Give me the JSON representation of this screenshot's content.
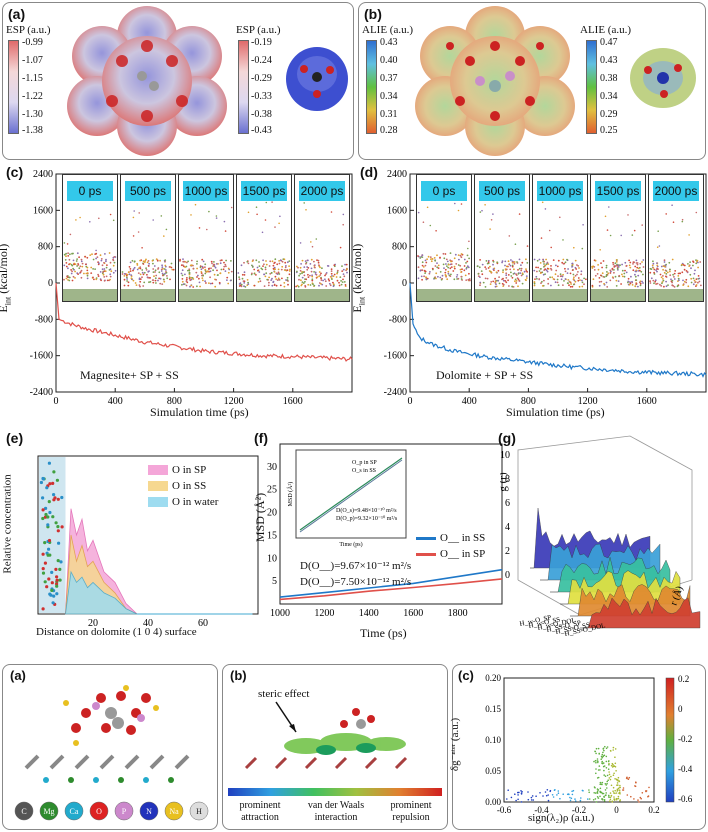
{
  "panel_a": {
    "label": "(a)",
    "title_left": "ESP (a.u.)",
    "ticks_left": [
      "-0.99",
      "-1.07",
      "-1.15",
      "-1.22",
      "-1.30",
      "-1.38"
    ],
    "title_right": "ESP (a.u.)",
    "ticks_right": [
      "-0.19",
      "-0.24",
      "-0.29",
      "-0.33",
      "-0.38",
      "-0.43"
    ]
  },
  "panel_b": {
    "label": "(b)",
    "title_left": "ALIE (a.u.)",
    "ticks_left": [
      "0.43",
      "0.40",
      "0.37",
      "0.34",
      "0.31",
      "0.28"
    ],
    "title_right": "ALIE (a.u.)",
    "ticks_right": [
      "0.47",
      "0.43",
      "0.38",
      "0.34",
      "0.29",
      "0.25"
    ]
  },
  "panel_c": {
    "label": "(c)",
    "ylabel": "E",
    "ylabel_sub": "int",
    "ylabel_unit": " (kcal/mol)",
    "xlabel": "Simulation time (ps)",
    "annotation": "Magnesite+ SP + SS",
    "snapshots": [
      "0 ps",
      "500 ps",
      "1000 ps",
      "1500 ps",
      "2000 ps"
    ],
    "color": "#e0504a"
  },
  "panel_d": {
    "label": "(d)",
    "ylabel": "E",
    "ylabel_sub": "int",
    "ylabel_unit": " (kcal/mol)",
    "xlabel": "Simulation time (ps)",
    "annotation": "Dolomite + SP + SS",
    "snapshots": [
      "0 ps",
      "500 ps",
      "1000 ps",
      "1500 ps",
      "2000 ps"
    ],
    "color": "#1f78c8"
  },
  "panel_e": {
    "label": "(e)",
    "ylabel": "Relative concentration",
    "xlabel": "Distance on dolomite (1 0 4) surface",
    "legend": [
      "O in SP",
      "O in SS",
      "O in water"
    ]
  },
  "panel_f": {
    "label": "(f)",
    "ylabel": "MSD (Å²)",
    "xlabel": "Time (ps)",
    "legend": [
      "O__ in SS",
      "O__ in SP"
    ],
    "d1": "D(O__)=9.67×10⁻¹² m²/s",
    "d2": "D(O__)=7.50×10⁻¹² m²/s",
    "inset_legend": [
      "O_p in SP",
      "O_s in SS"
    ],
    "inset_d1": "D(O_s)=9.48×10⁻¹⁰ m²/s",
    "inset_d2": "D(O_p)=9.32×10⁻¹⁰ m²/s",
    "inset_xlabel": "Time (ps)",
    "inset_ylabel": "MSD (Å²)"
  },
  "panel_g": {
    "label": "(g)",
    "ylabel": "g (r)",
    "xlabel": "r (Å)",
    "series_labels": [
      "H_w-O_SP",
      "H_w-O_SS",
      "H_w-O_DOL",
      "H_SS-O_SP",
      "H_SS-O_SS",
      "H_SS-O_DOL"
    ],
    "zticks": [
      "10",
      "8",
      "6",
      "4",
      "2",
      "0"
    ]
  },
  "bottom_a": {
    "label": "(a)",
    "atoms": [
      "C",
      "Mg",
      "Ca",
      "O",
      "P",
      "N",
      "Na",
      "H"
    ],
    "atom_colors": [
      "#555555",
      "#2e8b2e",
      "#22aacc",
      "#dd2222",
      "#cc88cc",
      "#2233bb",
      "#e8c020",
      "#dddddd"
    ]
  },
  "bottom_b": {
    "label": "(b)",
    "steric": "steric effect",
    "bar_labels": [
      "prominent attraction",
      "van der Waals interaction",
      "prominent repulsion"
    ]
  },
  "bottom_c": {
    "label": "(c)",
    "ylabel": "δg⁻ⁿᵗᵉʳ (a.u.)",
    "xlabel": "sign(λ₂)ρ (a.u.)",
    "cb_ticks": [
      "0.2",
      "0",
      "-0.2",
      "-0.4",
      "-0.6"
    ]
  },
  "chart_data": [
    {
      "type": "line",
      "title": "(c) Magnesite+ SP + SS",
      "xlabel": "Simulation time (ps)",
      "ylabel": "E_int (kcal/mol)",
      "xlim": [
        0,
        2000
      ],
      "ylim": [
        -2400,
        2400
      ],
      "xticks": [
        0,
        400,
        800,
        1200,
        1600
      ],
      "yticks": [
        2400,
        1600,
        800,
        0,
        -800,
        -1600,
        -2400
      ],
      "x": [
        0,
        20,
        100,
        200,
        400,
        600,
        800,
        1000,
        1200,
        1400,
        1600,
        1800,
        2000
      ],
      "y": [
        0,
        -800,
        -900,
        -1000,
        -1150,
        -1300,
        -1400,
        -1500,
        -1550,
        -1600,
        -1620,
        -1650,
        -1680
      ]
    },
    {
      "type": "line",
      "title": "(d) Dolomite + SP + SS",
      "xlabel": "Simulation time (ps)",
      "ylabel": "E_int (kcal/mol)",
      "xlim": [
        0,
        2000
      ],
      "ylim": [
        -2400,
        2400
      ],
      "xticks": [
        0,
        400,
        800,
        1200,
        1600
      ],
      "yticks": [
        2400,
        1600,
        800,
        0,
        -800,
        -1600,
        -2400
      ],
      "x": [
        0,
        20,
        60,
        150,
        300,
        500,
        700,
        900,
        1100,
        1300,
        1500,
        1700,
        1900,
        2000
      ],
      "y": [
        0,
        -900,
        -1200,
        -1350,
        -1500,
        -1620,
        -1700,
        -1780,
        -1850,
        -1900,
        -1950,
        -1980,
        -2000,
        -2020
      ]
    },
    {
      "type": "area",
      "title": "(e) Relative concentration",
      "xlabel": "Distance on dolomite (1 0 4) surface",
      "xlim": [
        0,
        80
      ],
      "xticks": [
        20,
        40,
        60
      ],
      "series": [
        {
          "name": "O in SP",
          "x": [
            10,
            12,
            14,
            16,
            18,
            20,
            24,
            28,
            32,
            36
          ],
          "values": [
            0,
            20,
            15,
            18,
            12,
            14,
            8,
            6,
            2,
            0
          ]
        },
        {
          "name": "O in SS",
          "x": [
            10,
            12,
            14,
            16,
            18,
            20,
            24,
            28,
            32,
            36
          ],
          "values": [
            0,
            15,
            10,
            13,
            9,
            10,
            6,
            4,
            1,
            0
          ]
        },
        {
          "name": "O in water",
          "x": [
            10,
            12,
            14,
            16,
            18,
            20,
            24,
            28,
            32,
            36
          ],
          "values": [
            0,
            8,
            6,
            7,
            5,
            6,
            4,
            3,
            1,
            0
          ]
        }
      ]
    },
    {
      "type": "line",
      "title": "(f) MSD",
      "xlabel": "Time (ps)",
      "ylabel": "MSD (Å²)",
      "xlim": [
        1000,
        2000
      ],
      "ylim": [
        0,
        35
      ],
      "xticks": [
        1000,
        1200,
        1400,
        1600,
        1800
      ],
      "yticks": [
        5,
        10,
        15,
        20,
        25,
        30
      ],
      "series": [
        {
          "name": "O in SS",
          "x": [
            1000,
            1200,
            1400,
            1600,
            1800,
            2000
          ],
          "values": [
            1.5,
            2.5,
            3.5,
            4.5,
            6.0,
            7.5
          ]
        },
        {
          "name": "O in SP",
          "x": [
            1000,
            1200,
            1400,
            1600,
            1800,
            2000
          ],
          "values": [
            1.0,
            1.8,
            2.8,
            3.6,
            4.5,
            5.5
          ]
        }
      ]
    },
    {
      "type": "scatter",
      "title": "(c) NCI scatter",
      "xlabel": "sign(λ2)ρ (a.u.)",
      "ylabel": "δg inter (a.u.)",
      "xlim": [
        -0.6,
        0.2
      ],
      "ylim": [
        0,
        0.2
      ],
      "xticks": [
        -0.6,
        -0.4,
        -0.2,
        0,
        0.2
      ],
      "yticks": [
        0,
        0.05,
        0.1,
        0.15,
        0.2
      ]
    }
  ]
}
